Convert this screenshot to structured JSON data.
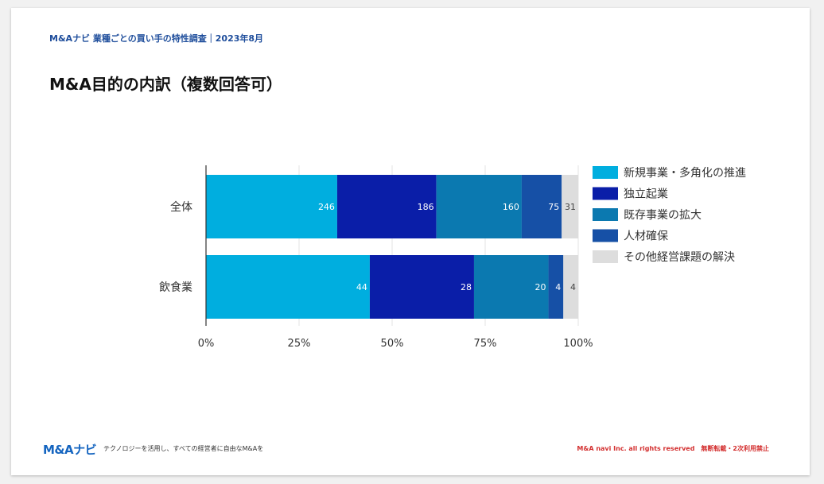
{
  "header": {
    "tag": "M&Aナビ 業種ごとの買い手の特性調査｜2023年8月"
  },
  "title": "M&A目的の内訳（複数回答可）",
  "footer": {
    "logo": "M&Aナビ",
    "tagline": "テクノロジーを活用し、すべての経営者に自由なM&Aを",
    "copyright": "M&A navi Inc. all rights reserved　無断転載・2次利用禁止"
  },
  "chart_data": {
    "type": "bar",
    "orientation": "horizontal",
    "stacked": true,
    "normalized": true,
    "categories": [
      "全体",
      "飲食業"
    ],
    "series": [
      {
        "name": "新規事業・多角化の推進",
        "values": [
          246,
          44
        ],
        "color": "#00aedf"
      },
      {
        "name": "独立起業",
        "values": [
          186,
          28
        ],
        "color": "#0a1ea8"
      },
      {
        "name": "既存事業の拡大",
        "values": [
          160,
          20
        ],
        "color": "#0b79b0"
      },
      {
        "name": "人材確保",
        "values": [
          75,
          4
        ],
        "color": "#1650a6"
      },
      {
        "name": "その他経営課題の解決",
        "values": [
          31,
          4
        ],
        "color": "#dddddd"
      }
    ],
    "xticks": [
      "0%",
      "25%",
      "50%",
      "75%",
      "100%"
    ],
    "xlim": [
      0,
      100
    ],
    "grid": true,
    "legend_position": "right"
  }
}
